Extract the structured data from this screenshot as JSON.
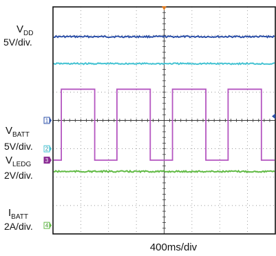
{
  "chart_data": {
    "type": "line",
    "time_base": "400ms/div",
    "x_divisions": 8,
    "y_divisions": 8,
    "grid": true,
    "channels": [
      {
        "id": 1,
        "marker": "1",
        "label_main": "V",
        "label_sub": "DD",
        "scale": "5V/div.",
        "color": "#2b4fa8",
        "shape": "flat",
        "level_div": 2.95
      },
      {
        "id": 2,
        "marker": "2",
        "label_main": "V",
        "label_sub": "BATT",
        "scale": "5V/div.",
        "color": "#45c3d3",
        "shape": "flat",
        "level_div": 2.0
      },
      {
        "id": 3,
        "marker": "3",
        "label_main": "V",
        "label_sub": "LEDG",
        "scale": "2V/div.",
        "color": "#b455c0",
        "shape": "square",
        "low_div": -1.4,
        "high_div": 1.1,
        "edges_div": [
          0.3,
          1.5,
          2.3,
          3.5,
          4.3,
          5.5,
          6.3,
          7.5
        ]
      },
      {
        "id": 4,
        "marker": "4",
        "label_main": "I",
        "label_sub": "BATT",
        "scale": "2A/div.",
        "color": "#62bb46",
        "shape": "flat",
        "level_div": -1.8
      }
    ],
    "trigger_color": "#e07a1f",
    "ref_marker_color": "#2b4fa8"
  }
}
